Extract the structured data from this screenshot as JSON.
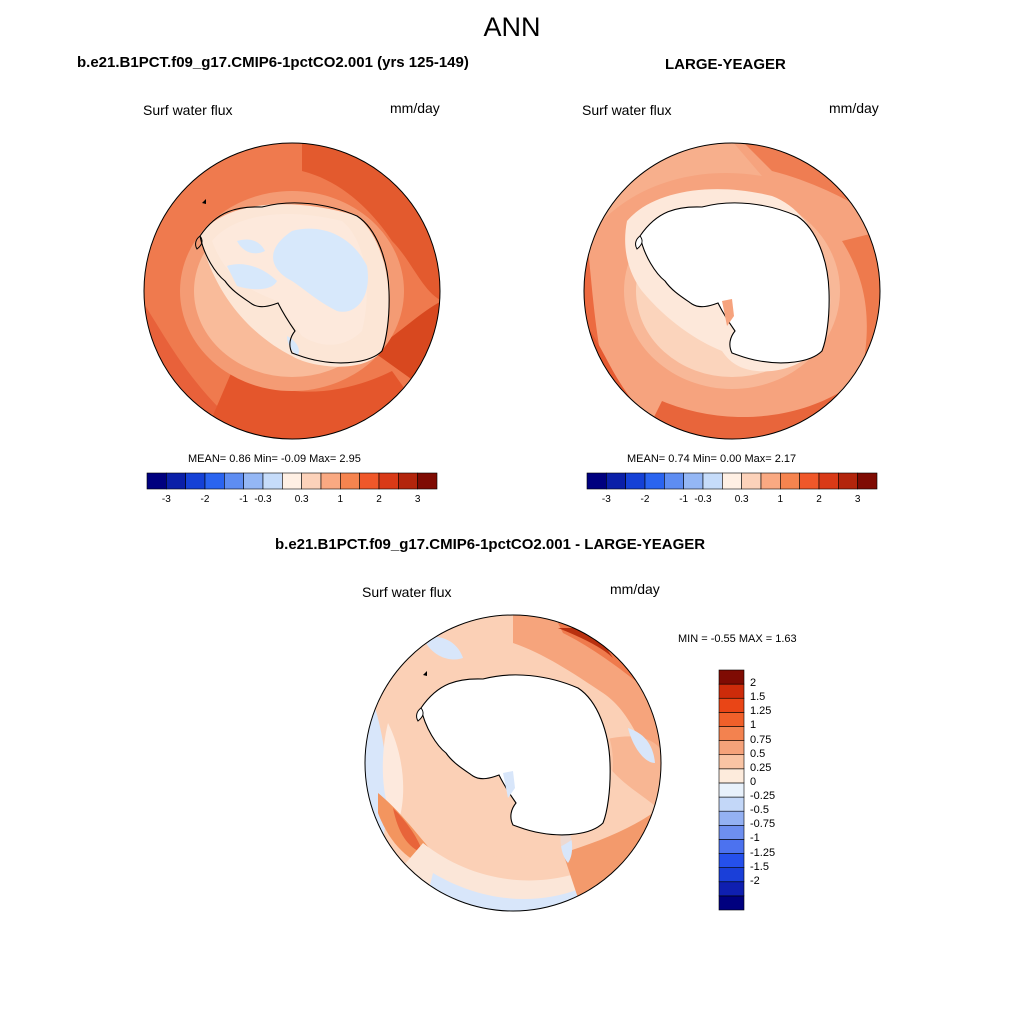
{
  "figure": {
    "title": "ANN"
  },
  "panels": [
    {
      "title": "b.e21.B1PCT.f09_g17.CMIP6-1pctCO2.001 (yrs 125-149)",
      "variable": "Surf water flux",
      "units": "mm/day",
      "stats": {
        "mean_label": "MEAN=",
        "mean": "0.86",
        "min_label": "Min=",
        "min": "-0.09",
        "max_label": "Max=",
        "max": "2.95"
      }
    },
    {
      "title": "LARGE-YEAGER",
      "variable": "Surf water flux",
      "units": "mm/day",
      "stats": {
        "mean_label": "MEAN=",
        "mean": "0.74",
        "min_label": "Min=",
        "min": "0.00",
        "max_label": "Max=",
        "max": "2.17"
      }
    },
    {
      "title": "b.e21.B1PCT.f09_g17.CMIP6-1pctCO2.001 - LARGE-YEAGER",
      "variable": "Surf water flux",
      "units": "mm/day",
      "stats": {
        "min_label": "MIN =",
        "min": "-0.55",
        "max_label": "MAX =",
        "max": "1.63"
      }
    }
  ],
  "colorbar_main": {
    "colors": [
      "#00007f",
      "#0a1fa8",
      "#1541d6",
      "#2a64f0",
      "#5e8df2",
      "#94b7f5",
      "#c6dcfa",
      "#fff0e4",
      "#fcd2ba",
      "#f9a982",
      "#f6844f",
      "#f0582a",
      "#d93a17",
      "#b3250c",
      "#7f0b03"
    ],
    "tick_labels": [
      "-3",
      "-2",
      "-1",
      "-0.3",
      "0.3",
      "1",
      "2",
      "3"
    ],
    "tick_boundaries": [
      1,
      3,
      5,
      6,
      8,
      10,
      12,
      14
    ]
  },
  "colorbar_diff": {
    "colors": [
      "#00007f",
      "#0f1fb0",
      "#1a3fd9",
      "#2550ec",
      "#4c72ef",
      "#6e8ff0",
      "#94b1f3",
      "#c3d7f8",
      "#e8f1fb",
      "#fdebdc",
      "#f9c4a4",
      "#f5a27a",
      "#f3824f",
      "#f0602a",
      "#e94516",
      "#cd2b0a",
      "#7f0b03"
    ],
    "tick_labels": [
      "2",
      "1.5",
      "1.25",
      "1",
      "0.75",
      "0.5",
      "0.25",
      "0",
      "-0.25",
      "-0.5",
      "-0.75",
      "-1",
      "-1.25",
      "-1.5",
      "-2"
    ]
  },
  "colors": {
    "land_fill": "#ffffff",
    "near_zero": "#fce8da",
    "negative_light": "#dbe8fb",
    "low": "#f9c4a4",
    "mid": "#f28a5e",
    "high": "#e2502a",
    "very_high": "#b32a10"
  }
}
